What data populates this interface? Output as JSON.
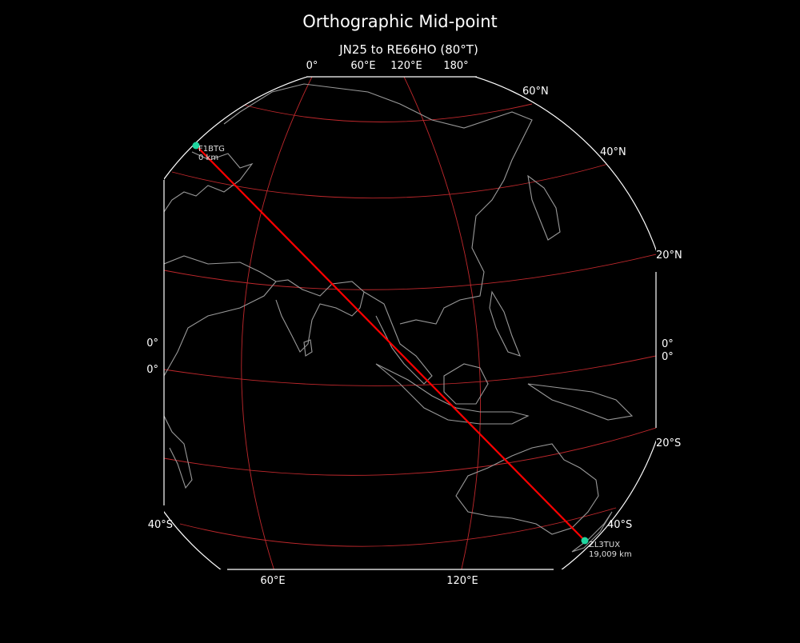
{
  "title": "Orthographic Mid-point",
  "subtitle": "JN25 to RE66HO (80°T)",
  "colors": {
    "background": "#000000",
    "graticule": "#c0282c",
    "coast": "#999999",
    "path": "#ff0000",
    "marker": "#1fd6a0",
    "outline": "#ffffff"
  },
  "top_labels": [
    "0°",
    "60°E",
    "120°E",
    "180°"
  ],
  "bottom_labels": [
    "60°E",
    "120°E"
  ],
  "right_labels": [
    "60°N",
    "40°N",
    "20°N",
    "0°",
    "0°",
    "20°S",
    "40°S"
  ],
  "left_labels": [
    "0°",
    "0°",
    "40°S"
  ],
  "start": {
    "call": "F1BTG",
    "distance": "0 km",
    "lat": 45.2,
    "lon": 7.5
  },
  "end": {
    "call": "ZL3TUX",
    "distance": "19,009 km",
    "lat": -43.6,
    "lon": 172.6
  },
  "projection": "orthographic"
}
